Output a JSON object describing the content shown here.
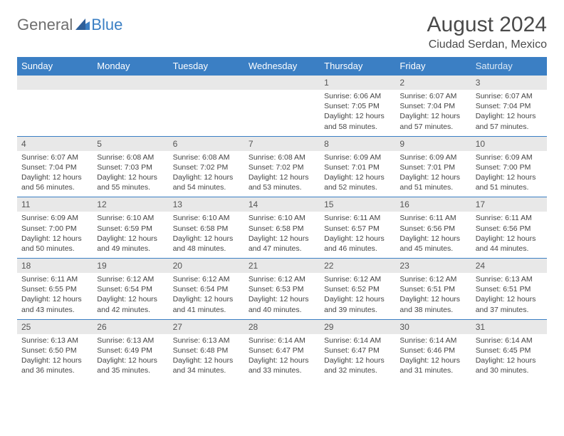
{
  "logo": {
    "text_general": "General",
    "text_blue": "Blue"
  },
  "header": {
    "month_title": "August 2024",
    "location": "Ciudad Serdan, Mexico"
  },
  "colors": {
    "header_bg": "#3b7fc4",
    "header_text": "#ffffff",
    "daynum_bg": "#e8e8e8",
    "border": "#3b7fc4",
    "body_text": "#444444",
    "logo_gray": "#6e6e6e",
    "logo_blue": "#3b7fc4"
  },
  "dow": [
    "Sunday",
    "Monday",
    "Tuesday",
    "Wednesday",
    "Thursday",
    "Friday",
    "Saturday"
  ],
  "weeks": [
    [
      null,
      null,
      null,
      null,
      {
        "n": "1",
        "sr": "Sunrise: 6:06 AM",
        "ss": "Sunset: 7:05 PM",
        "dl": "Daylight: 12 hours and 58 minutes."
      },
      {
        "n": "2",
        "sr": "Sunrise: 6:07 AM",
        "ss": "Sunset: 7:04 PM",
        "dl": "Daylight: 12 hours and 57 minutes."
      },
      {
        "n": "3",
        "sr": "Sunrise: 6:07 AM",
        "ss": "Sunset: 7:04 PM",
        "dl": "Daylight: 12 hours and 57 minutes."
      }
    ],
    [
      {
        "n": "4",
        "sr": "Sunrise: 6:07 AM",
        "ss": "Sunset: 7:04 PM",
        "dl": "Daylight: 12 hours and 56 minutes."
      },
      {
        "n": "5",
        "sr": "Sunrise: 6:08 AM",
        "ss": "Sunset: 7:03 PM",
        "dl": "Daylight: 12 hours and 55 minutes."
      },
      {
        "n": "6",
        "sr": "Sunrise: 6:08 AM",
        "ss": "Sunset: 7:02 PM",
        "dl": "Daylight: 12 hours and 54 minutes."
      },
      {
        "n": "7",
        "sr": "Sunrise: 6:08 AM",
        "ss": "Sunset: 7:02 PM",
        "dl": "Daylight: 12 hours and 53 minutes."
      },
      {
        "n": "8",
        "sr": "Sunrise: 6:09 AM",
        "ss": "Sunset: 7:01 PM",
        "dl": "Daylight: 12 hours and 52 minutes."
      },
      {
        "n": "9",
        "sr": "Sunrise: 6:09 AM",
        "ss": "Sunset: 7:01 PM",
        "dl": "Daylight: 12 hours and 51 minutes."
      },
      {
        "n": "10",
        "sr": "Sunrise: 6:09 AM",
        "ss": "Sunset: 7:00 PM",
        "dl": "Daylight: 12 hours and 51 minutes."
      }
    ],
    [
      {
        "n": "11",
        "sr": "Sunrise: 6:09 AM",
        "ss": "Sunset: 7:00 PM",
        "dl": "Daylight: 12 hours and 50 minutes."
      },
      {
        "n": "12",
        "sr": "Sunrise: 6:10 AM",
        "ss": "Sunset: 6:59 PM",
        "dl": "Daylight: 12 hours and 49 minutes."
      },
      {
        "n": "13",
        "sr": "Sunrise: 6:10 AM",
        "ss": "Sunset: 6:58 PM",
        "dl": "Daylight: 12 hours and 48 minutes."
      },
      {
        "n": "14",
        "sr": "Sunrise: 6:10 AM",
        "ss": "Sunset: 6:58 PM",
        "dl": "Daylight: 12 hours and 47 minutes."
      },
      {
        "n": "15",
        "sr": "Sunrise: 6:11 AM",
        "ss": "Sunset: 6:57 PM",
        "dl": "Daylight: 12 hours and 46 minutes."
      },
      {
        "n": "16",
        "sr": "Sunrise: 6:11 AM",
        "ss": "Sunset: 6:56 PM",
        "dl": "Daylight: 12 hours and 45 minutes."
      },
      {
        "n": "17",
        "sr": "Sunrise: 6:11 AM",
        "ss": "Sunset: 6:56 PM",
        "dl": "Daylight: 12 hours and 44 minutes."
      }
    ],
    [
      {
        "n": "18",
        "sr": "Sunrise: 6:11 AM",
        "ss": "Sunset: 6:55 PM",
        "dl": "Daylight: 12 hours and 43 minutes."
      },
      {
        "n": "19",
        "sr": "Sunrise: 6:12 AM",
        "ss": "Sunset: 6:54 PM",
        "dl": "Daylight: 12 hours and 42 minutes."
      },
      {
        "n": "20",
        "sr": "Sunrise: 6:12 AM",
        "ss": "Sunset: 6:54 PM",
        "dl": "Daylight: 12 hours and 41 minutes."
      },
      {
        "n": "21",
        "sr": "Sunrise: 6:12 AM",
        "ss": "Sunset: 6:53 PM",
        "dl": "Daylight: 12 hours and 40 minutes."
      },
      {
        "n": "22",
        "sr": "Sunrise: 6:12 AM",
        "ss": "Sunset: 6:52 PM",
        "dl": "Daylight: 12 hours and 39 minutes."
      },
      {
        "n": "23",
        "sr": "Sunrise: 6:12 AM",
        "ss": "Sunset: 6:51 PM",
        "dl": "Daylight: 12 hours and 38 minutes."
      },
      {
        "n": "24",
        "sr": "Sunrise: 6:13 AM",
        "ss": "Sunset: 6:51 PM",
        "dl": "Daylight: 12 hours and 37 minutes."
      }
    ],
    [
      {
        "n": "25",
        "sr": "Sunrise: 6:13 AM",
        "ss": "Sunset: 6:50 PM",
        "dl": "Daylight: 12 hours and 36 minutes."
      },
      {
        "n": "26",
        "sr": "Sunrise: 6:13 AM",
        "ss": "Sunset: 6:49 PM",
        "dl": "Daylight: 12 hours and 35 minutes."
      },
      {
        "n": "27",
        "sr": "Sunrise: 6:13 AM",
        "ss": "Sunset: 6:48 PM",
        "dl": "Daylight: 12 hours and 34 minutes."
      },
      {
        "n": "28",
        "sr": "Sunrise: 6:14 AM",
        "ss": "Sunset: 6:47 PM",
        "dl": "Daylight: 12 hours and 33 minutes."
      },
      {
        "n": "29",
        "sr": "Sunrise: 6:14 AM",
        "ss": "Sunset: 6:47 PM",
        "dl": "Daylight: 12 hours and 32 minutes."
      },
      {
        "n": "30",
        "sr": "Sunrise: 6:14 AM",
        "ss": "Sunset: 6:46 PM",
        "dl": "Daylight: 12 hours and 31 minutes."
      },
      {
        "n": "31",
        "sr": "Sunrise: 6:14 AM",
        "ss": "Sunset: 6:45 PM",
        "dl": "Daylight: 12 hours and 30 minutes."
      }
    ]
  ]
}
